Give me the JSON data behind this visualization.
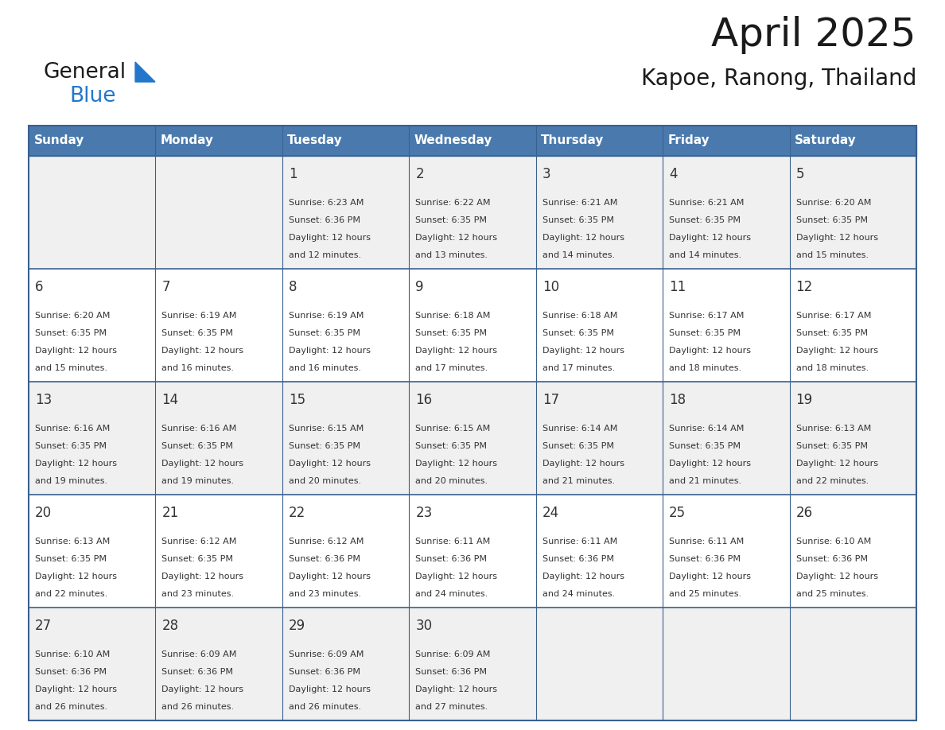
{
  "title": "April 2025",
  "subtitle": "Kapoe, Ranong, Thailand",
  "header_color": "#4a7aad",
  "header_text_color": "#ffffff",
  "cell_bg_even": "#f0f0f0",
  "cell_bg_odd": "#ffffff",
  "border_color": "#3a6090",
  "text_color": "#333333",
  "day_headers": [
    "Sunday",
    "Monday",
    "Tuesday",
    "Wednesday",
    "Thursday",
    "Friday",
    "Saturday"
  ],
  "weeks": [
    [
      {
        "day": "",
        "sunrise": "",
        "sunset": "",
        "daylight": ""
      },
      {
        "day": "",
        "sunrise": "",
        "sunset": "",
        "daylight": ""
      },
      {
        "day": "1",
        "sunrise": "6:23 AM",
        "sunset": "6:36 PM",
        "daylight": "12 hours and 12 minutes."
      },
      {
        "day": "2",
        "sunrise": "6:22 AM",
        "sunset": "6:35 PM",
        "daylight": "12 hours and 13 minutes."
      },
      {
        "day": "3",
        "sunrise": "6:21 AM",
        "sunset": "6:35 PM",
        "daylight": "12 hours and 14 minutes."
      },
      {
        "day": "4",
        "sunrise": "6:21 AM",
        "sunset": "6:35 PM",
        "daylight": "12 hours and 14 minutes."
      },
      {
        "day": "5",
        "sunrise": "6:20 AM",
        "sunset": "6:35 PM",
        "daylight": "12 hours and 15 minutes."
      }
    ],
    [
      {
        "day": "6",
        "sunrise": "6:20 AM",
        "sunset": "6:35 PM",
        "daylight": "12 hours and 15 minutes."
      },
      {
        "day": "7",
        "sunrise": "6:19 AM",
        "sunset": "6:35 PM",
        "daylight": "12 hours and 16 minutes."
      },
      {
        "day": "8",
        "sunrise": "6:19 AM",
        "sunset": "6:35 PM",
        "daylight": "12 hours and 16 minutes."
      },
      {
        "day": "9",
        "sunrise": "6:18 AM",
        "sunset": "6:35 PM",
        "daylight": "12 hours and 17 minutes."
      },
      {
        "day": "10",
        "sunrise": "6:18 AM",
        "sunset": "6:35 PM",
        "daylight": "12 hours and 17 minutes."
      },
      {
        "day": "11",
        "sunrise": "6:17 AM",
        "sunset": "6:35 PM",
        "daylight": "12 hours and 18 minutes."
      },
      {
        "day": "12",
        "sunrise": "6:17 AM",
        "sunset": "6:35 PM",
        "daylight": "12 hours and 18 minutes."
      }
    ],
    [
      {
        "day": "13",
        "sunrise": "6:16 AM",
        "sunset": "6:35 PM",
        "daylight": "12 hours and 19 minutes."
      },
      {
        "day": "14",
        "sunrise": "6:16 AM",
        "sunset": "6:35 PM",
        "daylight": "12 hours and 19 minutes."
      },
      {
        "day": "15",
        "sunrise": "6:15 AM",
        "sunset": "6:35 PM",
        "daylight": "12 hours and 20 minutes."
      },
      {
        "day": "16",
        "sunrise": "6:15 AM",
        "sunset": "6:35 PM",
        "daylight": "12 hours and 20 minutes."
      },
      {
        "day": "17",
        "sunrise": "6:14 AM",
        "sunset": "6:35 PM",
        "daylight": "12 hours and 21 minutes."
      },
      {
        "day": "18",
        "sunrise": "6:14 AM",
        "sunset": "6:35 PM",
        "daylight": "12 hours and 21 minutes."
      },
      {
        "day": "19",
        "sunrise": "6:13 AM",
        "sunset": "6:35 PM",
        "daylight": "12 hours and 22 minutes."
      }
    ],
    [
      {
        "day": "20",
        "sunrise": "6:13 AM",
        "sunset": "6:35 PM",
        "daylight": "12 hours and 22 minutes."
      },
      {
        "day": "21",
        "sunrise": "6:12 AM",
        "sunset": "6:35 PM",
        "daylight": "12 hours and 23 minutes."
      },
      {
        "day": "22",
        "sunrise": "6:12 AM",
        "sunset": "6:36 PM",
        "daylight": "12 hours and 23 minutes."
      },
      {
        "day": "23",
        "sunrise": "6:11 AM",
        "sunset": "6:36 PM",
        "daylight": "12 hours and 24 minutes."
      },
      {
        "day": "24",
        "sunrise": "6:11 AM",
        "sunset": "6:36 PM",
        "daylight": "12 hours and 24 minutes."
      },
      {
        "day": "25",
        "sunrise": "6:11 AM",
        "sunset": "6:36 PM",
        "daylight": "12 hours and 25 minutes."
      },
      {
        "day": "26",
        "sunrise": "6:10 AM",
        "sunset": "6:36 PM",
        "daylight": "12 hours and 25 minutes."
      }
    ],
    [
      {
        "day": "27",
        "sunrise": "6:10 AM",
        "sunset": "6:36 PM",
        "daylight": "12 hours and 26 minutes."
      },
      {
        "day": "28",
        "sunrise": "6:09 AM",
        "sunset": "6:36 PM",
        "daylight": "12 hours and 26 minutes."
      },
      {
        "day": "29",
        "sunrise": "6:09 AM",
        "sunset": "6:36 PM",
        "daylight": "12 hours and 26 minutes."
      },
      {
        "day": "30",
        "sunrise": "6:09 AM",
        "sunset": "6:36 PM",
        "daylight": "12 hours and 27 minutes."
      },
      {
        "day": "",
        "sunrise": "",
        "sunset": "",
        "daylight": ""
      },
      {
        "day": "",
        "sunrise": "",
        "sunset": "",
        "daylight": ""
      },
      {
        "day": "",
        "sunrise": "",
        "sunset": "",
        "daylight": ""
      }
    ]
  ],
  "logo_color_general": "#1a1a1a",
  "logo_color_blue": "#2277cc",
  "logo_triangle_color": "#2277cc",
  "title_fontsize": 36,
  "subtitle_fontsize": 20,
  "header_fontsize": 11,
  "day_num_fontsize": 12,
  "cell_text_fontsize": 8
}
